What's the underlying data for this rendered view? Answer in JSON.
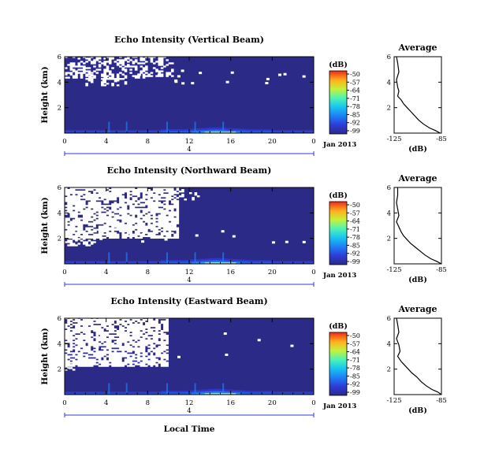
{
  "figure": {
    "date_label": "Jan 2013",
    "x_axis_title": "Local Time"
  },
  "colorbar": {
    "unit": "(dB)",
    "ticks": [
      "-50",
      "-57",
      "-64",
      "-71",
      "-78",
      "-85",
      "-92",
      "-99"
    ]
  },
  "chart_data": [
    {
      "type": "heatmap",
      "title": "Echo Intensity (Vertical Beam)",
      "ylabel": "Height (km)",
      "x_ticks": [
        "0",
        "4",
        "8",
        "12",
        "16",
        "20",
        "0"
      ],
      "x_range": [
        0,
        24
      ],
      "date_marker": "4",
      "y_ticks": [
        "6",
        "4",
        "2"
      ],
      "y_range": [
        0,
        6
      ],
      "value_range_db": [
        -99,
        -50
      ],
      "missing_data": "white",
      "note": "Low background (~-99 dB) above ~1 km; stronger echoes (-92 to -64 dB) near surface, peaking ~12-17 LT",
      "average_profile": {
        "title": "Average",
        "xlabel": "(dB)",
        "x_ticks": [
          "-125",
          "-85"
        ],
        "y_ticks": [
          "6",
          "4",
          "2"
        ],
        "x": [
          -123,
          -122,
          -121,
          -123,
          -122,
          -121,
          -122,
          -119,
          -117,
          -114,
          -111,
          -108,
          -104,
          -100,
          -95,
          -90,
          -86
        ],
        "y": [
          6.0,
          5.5,
          4.8,
          4.2,
          3.6,
          3.3,
          2.9,
          2.6,
          2.3,
          2.0,
          1.7,
          1.4,
          1.0,
          0.7,
          0.4,
          0.2,
          0.0
        ]
      }
    },
    {
      "type": "heatmap",
      "title": "Echo Intensity (Northward Beam)",
      "ylabel": "Height (km)",
      "x_ticks": [
        "0",
        "4",
        "8",
        "12",
        "16",
        "20",
        "0"
      ],
      "x_range": [
        0,
        24
      ],
      "date_marker": "4",
      "y_ticks": [
        "6",
        "4",
        "2"
      ],
      "y_range": [
        0,
        6
      ],
      "value_range_db": [
        -99,
        -50
      ],
      "missing_data": "white",
      "note": "Large missing-data region above ~2 km before ~11 LT; near-surface echoes strongest ~12-17 LT",
      "average_profile": {
        "title": "Average",
        "xlabel": "(dB)",
        "x_ticks": [
          "-125",
          "-85"
        ],
        "y_ticks": [
          "6",
          "4",
          "2"
        ],
        "x": [
          -122,
          -122,
          -123,
          -122,
          -121,
          -123,
          -121,
          -119,
          -117,
          -114,
          -111,
          -107,
          -103,
          -99,
          -94,
          -89,
          -85
        ],
        "y": [
          6.0,
          5.4,
          4.8,
          4.3,
          3.8,
          3.3,
          2.9,
          2.5,
          2.2,
          1.9,
          1.6,
          1.3,
          1.0,
          0.7,
          0.4,
          0.2,
          0.0
        ]
      }
    },
    {
      "type": "heatmap",
      "title": "Echo Intensity (Eastward Beam)",
      "ylabel": "Height (km)",
      "x_ticks": [
        "0",
        "4",
        "8",
        "12",
        "16",
        "20",
        "0"
      ],
      "x_range": [
        0,
        24
      ],
      "date_marker": "4",
      "y_ticks": [
        "6",
        "4",
        "2"
      ],
      "y_range": [
        0,
        6
      ],
      "value_range_db": [
        -99,
        -50
      ],
      "missing_data": "white",
      "note": "Missing-data region above ~2 km before ~10 LT; near-surface echoes peak ~13-17 LT",
      "average_profile": {
        "title": "Average",
        "xlabel": "(dB)",
        "x_ticks": [
          "-125",
          "-85"
        ],
        "y_ticks": [
          "6",
          "4",
          "2"
        ],
        "x": [
          -123,
          -122,
          -121,
          -123,
          -121,
          -120,
          -122,
          -119,
          -116,
          -113,
          -110,
          -106,
          -102,
          -98,
          -93,
          -88,
          -85
        ],
        "y": [
          6.0,
          5.5,
          4.9,
          4.4,
          3.9,
          3.4,
          3.0,
          2.6,
          2.3,
          2.0,
          1.7,
          1.4,
          1.0,
          0.7,
          0.4,
          0.2,
          0.0
        ]
      }
    }
  ]
}
